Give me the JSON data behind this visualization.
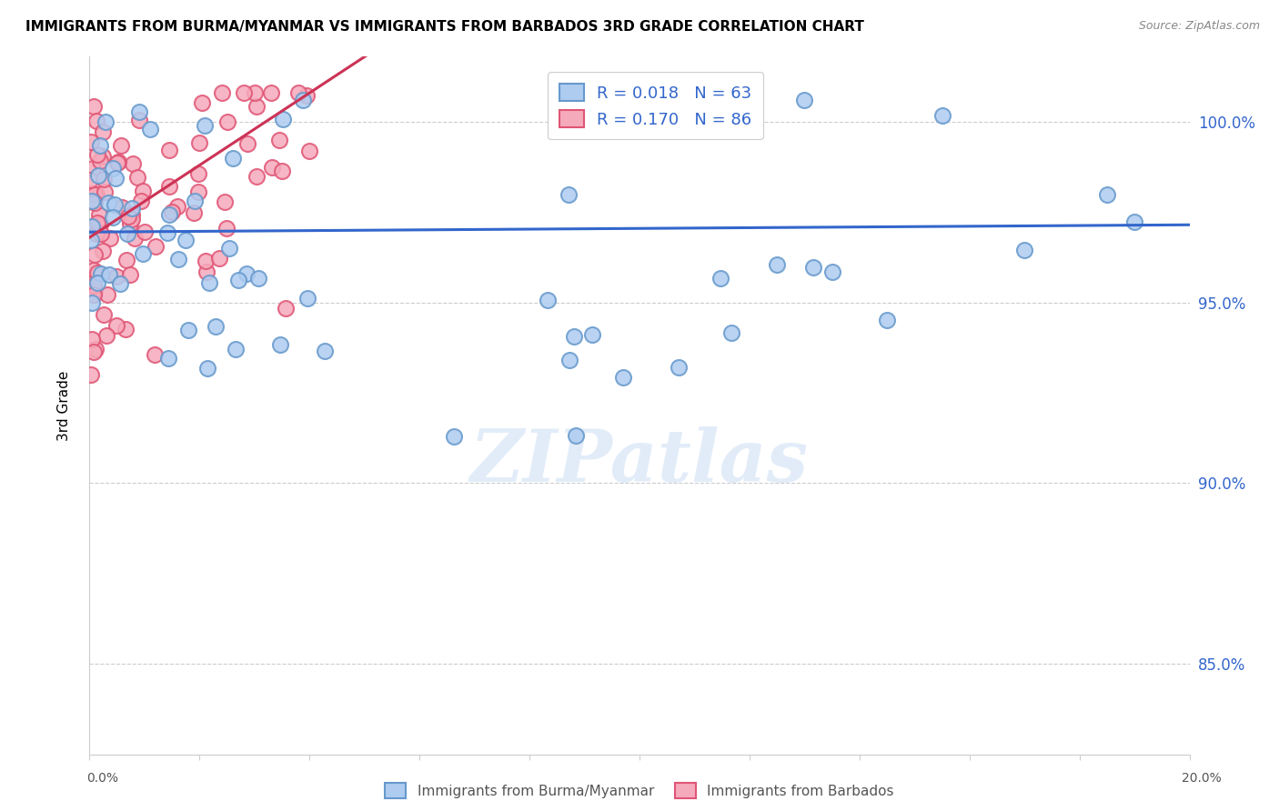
{
  "title": "IMMIGRANTS FROM BURMA/MYANMAR VS IMMIGRANTS FROM BARBADOS 3RD GRADE CORRELATION CHART",
  "source": "Source: ZipAtlas.com",
  "ylabel": "3rd Grade",
  "x_min": 0.0,
  "x_max": 0.2,
  "y_min": 0.825,
  "y_max": 1.018,
  "y_ticks": [
    0.85,
    0.9,
    0.95,
    1.0
  ],
  "y_tick_labels": [
    "85.0%",
    "90.0%",
    "95.0%",
    "100.0%"
  ],
  "watermark": "ZIPatlas",
  "legend_blue_r": "R = 0.018",
  "legend_blue_n": "N = 63",
  "legend_pink_r": "R = 0.170",
  "legend_pink_n": "N = 86",
  "blue_color": "#aeccf0",
  "blue_edge": "#6699cc",
  "pink_color": "#f5aabb",
  "pink_edge": "#e05575",
  "blue_line_color": "#3366cc",
  "pink_line_color": "#cc3355",
  "blue_line_y0": 0.9695,
  "blue_line_y1": 0.9715,
  "pink_line_y0": 0.968,
  "pink_line_y1": 1.008
}
